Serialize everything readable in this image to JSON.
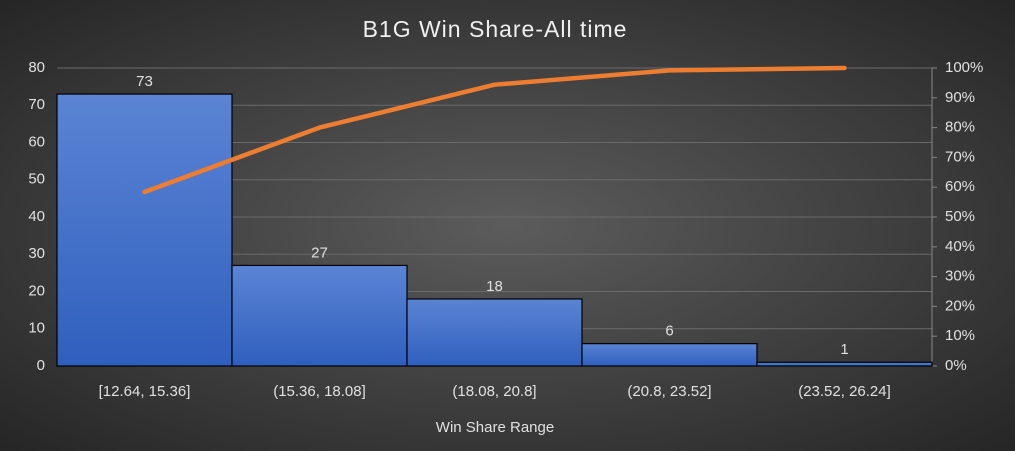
{
  "chart_data": {
    "type": "pareto",
    "title": "B1G Win Share-All time",
    "x_label": "Win Share Range",
    "categories": [
      "[12.64, 15.36]",
      "(15.36, 18.08]",
      "(18.08, 20.8]",
      "(20.8, 23.52]",
      "(23.52, 26.24]"
    ],
    "values": [
      73,
      27,
      18,
      6,
      1
    ],
    "color": "#4472c4",
    "line_values": [
      58.4,
      80,
      94.4,
      99.2,
      100
    ],
    "line_axis": "y2",
    "line_color": "#ed7d31",
    "ylim": [
      0,
      80
    ],
    "yticks": [
      0,
      10,
      20,
      30,
      40,
      50,
      60,
      70,
      80
    ],
    "y2lim": [
      0,
      100
    ],
    "y2ticks": [
      {
        "value": 0,
        "label": "0%"
      },
      {
        "value": 10,
        "label": "10%"
      },
      {
        "value": 20,
        "label": "20%"
      },
      {
        "value": 30,
        "label": "30%"
      },
      {
        "value": 40,
        "label": "40%"
      },
      {
        "value": 50,
        "label": "50%"
      },
      {
        "value": 60,
        "label": "60%"
      },
      {
        "value": 70,
        "label": "70%"
      },
      {
        "value": 80,
        "label": "80%"
      },
      {
        "value": 90,
        "label": "90%"
      },
      {
        "value": 100,
        "label": "100%"
      }
    ],
    "grid": true
  }
}
